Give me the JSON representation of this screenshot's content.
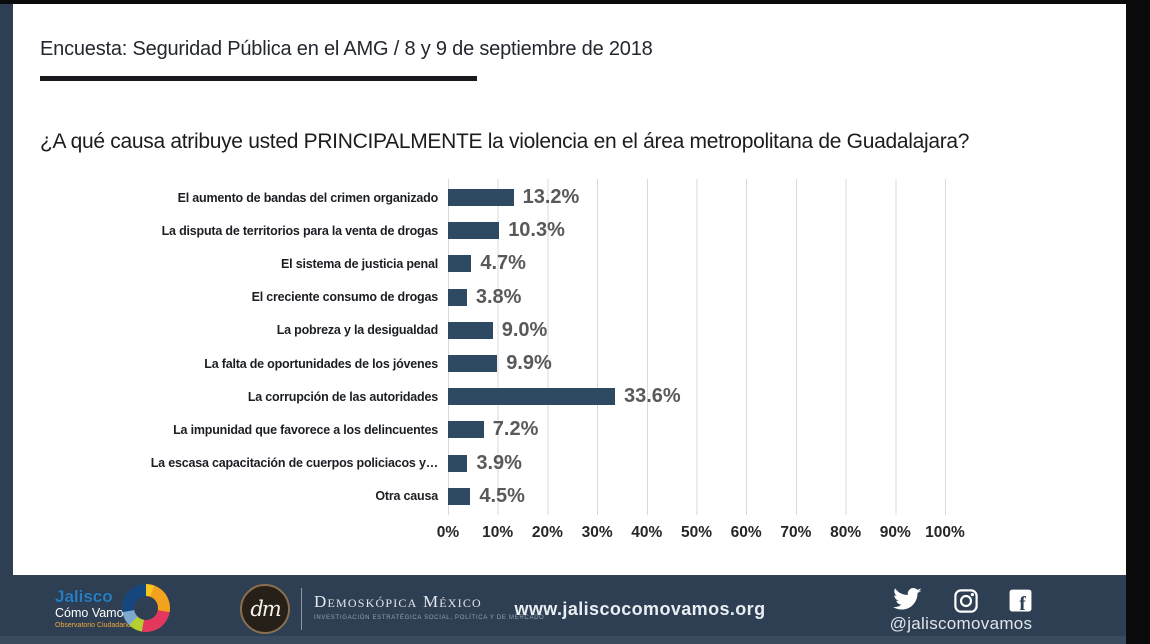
{
  "slide": {
    "title": "Encuesta: Seguridad Pública en el AMG / 8 y 9 de septiembre de 2018",
    "question": "¿A qué causa atribuye usted PRINCIPALMENTE la violencia en el área metropolitana de Guadalajara?"
  },
  "chart_data": {
    "type": "bar",
    "orientation": "horizontal",
    "title": "¿A qué causa atribuye usted PRINCIPALMENTE la violencia en el área metropolitana de Guadalajara?",
    "categories": [
      "El aumento de bandas del crimen organizado",
      "La disputa de territorios para la venta de drogas",
      "El sistema de justicia penal",
      "El creciente consumo de drogas",
      "La pobreza y la desigualdad",
      "La falta de oportunidades de los jóvenes",
      "La corrupción de las autoridades",
      "La impunidad que favorece a los delincuentes",
      "La escasa capacitación de cuerpos policiacos y…",
      "Otra causa"
    ],
    "values": [
      13.2,
      10.3,
      4.7,
      3.8,
      9.0,
      9.9,
      33.6,
      7.2,
      3.9,
      4.5
    ],
    "value_labels": [
      "13.2%",
      "10.3%",
      "4.7%",
      "3.8%",
      "9.0%",
      "9.9%",
      "33.6%",
      "7.2%",
      "3.9%",
      "4.5%"
    ],
    "x_ticks": [
      "0%",
      "10%",
      "20%",
      "30%",
      "40%",
      "50%",
      "60%",
      "70%",
      "80%",
      "90%",
      "100%"
    ],
    "xlim": [
      0,
      100
    ],
    "grid": true,
    "legend": false,
    "xlabel": "",
    "ylabel": ""
  },
  "footer": {
    "jalisco": {
      "line1": "Jalisco",
      "line2": "Cómo Vamos",
      "line3": "Observatorio Ciudadano"
    },
    "dm_monogram": "dm",
    "demoskopica": {
      "name": "Demoskópica México",
      "tagline": "INVESTIGACIÓN ESTRATÉGICA SOCIAL, POLÍTICA Y DE MERCADO"
    },
    "website": "www.jaliscocomovamos.org",
    "social_handle": "@jaliscomovamos",
    "social_icons": [
      "twitter-icon",
      "instagram-icon",
      "facebook-icon"
    ]
  },
  "colors": {
    "navy": "#2e3f53",
    "bar": "#2e4a63",
    "strip_black": "#0b0b0b",
    "grid": "#d9d9d9",
    "value_text": "#58595b",
    "accent_blue": "#2b7bbf",
    "accent_orange": "#f0a63c"
  }
}
